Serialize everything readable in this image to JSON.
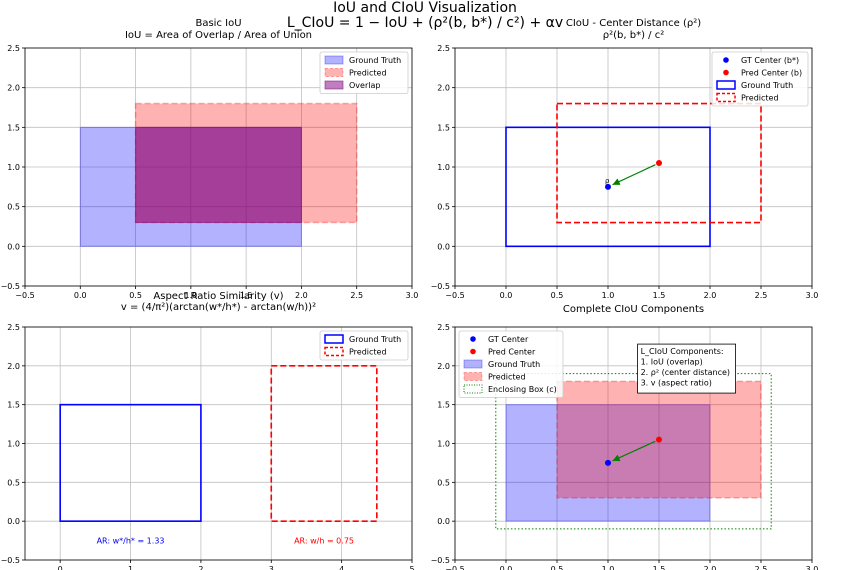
{
  "figure": {
    "title_line1": "IoU and CIoU Visualization",
    "title_line2": "L_CIoU = 1 − IoU + (ρ²(b, b*) / c²) + αv"
  },
  "colors": {
    "gt": "#0000ff",
    "pred": "#ff0000",
    "overlap": "#800080",
    "arrow": "#008000",
    "enclosing": "#008000",
    "grid": "#c0c0c0"
  },
  "chart_data": [
    {
      "type": "rectangles",
      "title": "Basic IoU",
      "subtitle": "IoU = Area of Overlap / Area of Union",
      "xlim": [
        -0.5,
        3.0
      ],
      "ylim": [
        -0.5,
        2.5
      ],
      "xticks": [
        -0.5,
        0.0,
        0.5,
        1.0,
        1.5,
        2.0,
        2.5,
        3.0
      ],
      "yticks": [
        -0.5,
        0.0,
        0.5,
        1.0,
        1.5,
        2.0,
        2.5
      ],
      "grid": true,
      "legend_position": "top-right",
      "boxes": [
        {
          "name": "Ground Truth",
          "x0": 0.0,
          "y0": 0.0,
          "x1": 2.0,
          "y1": 1.5,
          "style": "filled",
          "color": "#0000ff",
          "alpha": 0.3
        },
        {
          "name": "Predicted",
          "x0": 0.5,
          "y0": 0.3,
          "x1": 2.5,
          "y1": 1.8,
          "style": "filled-dashed",
          "color": "#ff0000",
          "alpha": 0.3
        },
        {
          "name": "Overlap",
          "x0": 0.5,
          "y0": 0.3,
          "x1": 2.0,
          "y1": 1.5,
          "style": "filled",
          "color": "#800080",
          "alpha": 0.5
        }
      ]
    },
    {
      "type": "rectangles",
      "title": "CIoU - Center Distance (ρ²)",
      "subtitle": "ρ²(b, b*) / c²",
      "xlim": [
        -0.5,
        3.0
      ],
      "ylim": [
        -0.5,
        2.5
      ],
      "xticks": [
        -0.5,
        0.0,
        0.5,
        1.0,
        1.5,
        2.0,
        2.5,
        3.0
      ],
      "yticks": [
        -0.5,
        0.0,
        0.5,
        1.0,
        1.5,
        2.0,
        2.5
      ],
      "grid": true,
      "legend_position": "top-right",
      "points": [
        {
          "name": "GT Center (b*)",
          "x": 1.0,
          "y": 0.75,
          "color": "#0000ff"
        },
        {
          "name": "Pred Center (b)",
          "x": 1.5,
          "y": 1.05,
          "color": "#ff0000"
        }
      ],
      "boxes": [
        {
          "name": "Ground Truth",
          "x0": 0.0,
          "y0": 0.0,
          "x1": 2.0,
          "y1": 1.5,
          "style": "outline",
          "color": "#0000ff"
        },
        {
          "name": "Predicted",
          "x0": 0.5,
          "y0": 0.3,
          "x1": 2.5,
          "y1": 1.8,
          "style": "outline-dashed",
          "color": "#ff0000"
        }
      ],
      "arrow": {
        "from": [
          1.5,
          1.05
        ],
        "to": [
          1.0,
          0.75
        ],
        "label": "ρ"
      }
    },
    {
      "type": "rectangles",
      "title": "Aspect Ratio Similarity (v)",
      "subtitle": "v = (4/π²)(arctan(w*/h*) - arctan(w/h))²",
      "xlim": [
        -0.5,
        5.0
      ],
      "ylim": [
        -0.5,
        2.5
      ],
      "xticks": [
        0,
        1,
        2,
        3,
        4,
        5
      ],
      "yticks": [
        -0.5,
        0.0,
        0.5,
        1.0,
        1.5,
        2.0,
        2.5
      ],
      "grid": true,
      "legend_position": "top-right",
      "boxes": [
        {
          "name": "Ground Truth",
          "x0": 0.0,
          "y0": 0.0,
          "x1": 2.0,
          "y1": 1.5,
          "style": "outline",
          "color": "#0000ff"
        },
        {
          "name": "Predicted",
          "x0": 3.0,
          "y0": 0.0,
          "x1": 4.5,
          "y1": 2.0,
          "style": "outline-dashed",
          "color": "#ff0000"
        }
      ],
      "annotations": [
        {
          "text": "AR: w*/h* = 1.33",
          "x": 1.0,
          "y": -0.25,
          "color": "#0000ff"
        },
        {
          "text": "AR: w/h = 0.75",
          "x": 3.75,
          "y": -0.25,
          "color": "#ff0000"
        }
      ]
    },
    {
      "type": "rectangles",
      "title": "Complete CIoU Components",
      "subtitle": "",
      "xlim": [
        -0.5,
        3.0
      ],
      "ylim": [
        -0.5,
        2.5
      ],
      "xticks": [
        -0.5,
        0.0,
        0.5,
        1.0,
        1.5,
        2.0,
        2.5,
        3.0
      ],
      "yticks": [
        -0.5,
        0.0,
        0.5,
        1.0,
        1.5,
        2.0,
        2.5
      ],
      "grid": true,
      "legend_position": "top-left",
      "points": [
        {
          "name": "GT Center",
          "x": 1.0,
          "y": 0.75,
          "color": "#0000ff"
        },
        {
          "name": "Pred Center",
          "x": 1.5,
          "y": 1.05,
          "color": "#ff0000"
        }
      ],
      "boxes": [
        {
          "name": "Ground Truth",
          "x0": 0.0,
          "y0": 0.0,
          "x1": 2.0,
          "y1": 1.5,
          "style": "filled",
          "color": "#0000ff",
          "alpha": 0.3
        },
        {
          "name": "Predicted",
          "x0": 0.5,
          "y0": 0.3,
          "x1": 2.5,
          "y1": 1.8,
          "style": "filled-dashed",
          "color": "#ff0000",
          "alpha": 0.3
        },
        {
          "name": "Enclosing Box (c)",
          "x0": -0.1,
          "y0": -0.1,
          "x1": 2.6,
          "y1": 1.9,
          "style": "dotted",
          "color": "#008000"
        }
      ],
      "arrow": {
        "from": [
          1.5,
          1.05
        ],
        "to": [
          1.0,
          0.75
        ],
        "label": ""
      },
      "infobox": [
        "L_CIoU Components:",
        "1. IoU (overlap)",
        "2. ρ² (center distance)",
        "3. v (aspect ratio)"
      ]
    }
  ]
}
